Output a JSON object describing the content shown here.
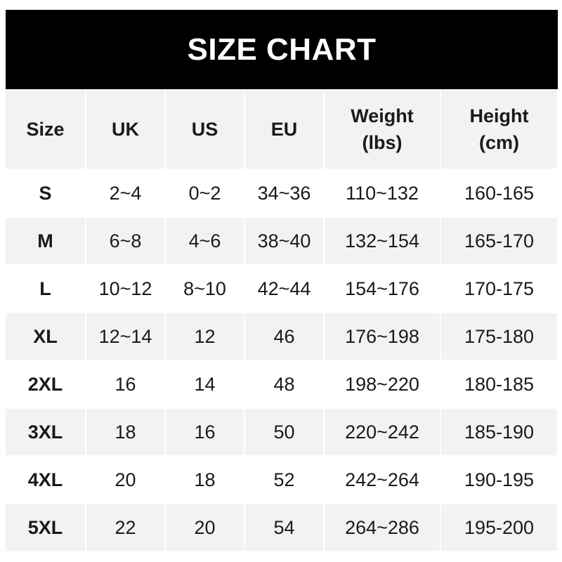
{
  "title": "SIZE CHART",
  "colors": {
    "banner": "#000000",
    "shaded_row": "#f2f2f2",
    "text": "#1a1a1a"
  },
  "headers": [
    "Size",
    "UK",
    "US",
    "EU",
    "Weight\n(lbs)",
    "Height\n(cm)"
  ],
  "rows": [
    [
      "S",
      "2~4",
      "0~2",
      "34~36",
      "110~132",
      "160-165"
    ],
    [
      "M",
      "6~8",
      "4~6",
      "38~40",
      "132~154",
      "165-170"
    ],
    [
      "L",
      "10~12",
      "8~10",
      "42~44",
      "154~176",
      "170-175"
    ],
    [
      "XL",
      "12~14",
      "12",
      "46",
      "176~198",
      "175-180"
    ],
    [
      "2XL",
      "16",
      "14",
      "48",
      "198~220",
      "180-185"
    ],
    [
      "3XL",
      "18",
      "16",
      "50",
      "220~242",
      "185-190"
    ],
    [
      "4XL",
      "20",
      "18",
      "52",
      "242~264",
      "190-195"
    ],
    [
      "5XL",
      "22",
      "20",
      "54",
      "264~286",
      "195-200"
    ]
  ]
}
